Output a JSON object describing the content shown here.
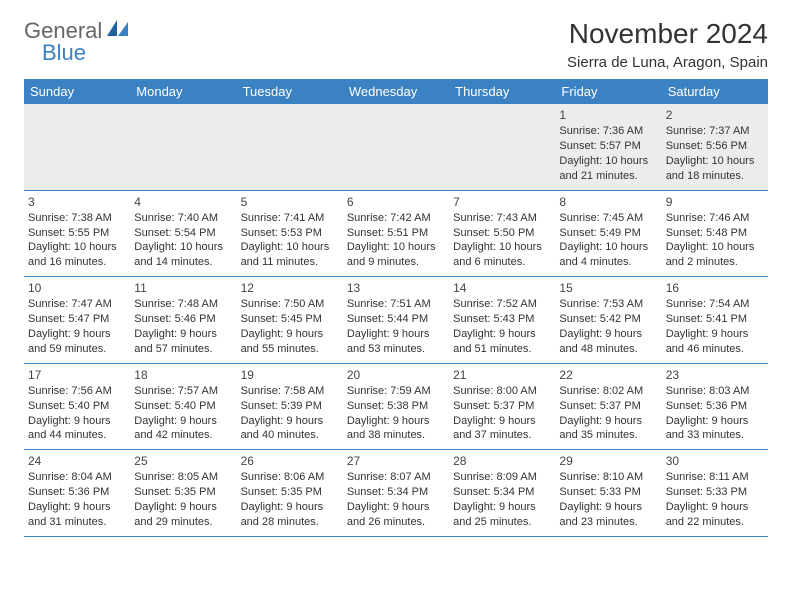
{
  "brand": {
    "general": "General",
    "blue": "Blue"
  },
  "title": "November 2024",
  "subtitle": "Sierra de Luna, Aragon, Spain",
  "colors": {
    "header_bg": "#3b82c4",
    "header_text": "#ffffff",
    "row1_bg": "#ececec",
    "border": "#3b82c4",
    "text": "#333333",
    "logo_gray": "#666666",
    "logo_blue": "#3b82c4",
    "page_bg": "#ffffff"
  },
  "layout": {
    "columns": 7,
    "rows": 5,
    "day_header_fontsize": 13,
    "title_fontsize": 28,
    "subtitle_fontsize": 15,
    "cell_fontsize": 11,
    "daynum_fontsize": 12
  },
  "weekdays": [
    "Sunday",
    "Monday",
    "Tuesday",
    "Wednesday",
    "Thursday",
    "Friday",
    "Saturday"
  ],
  "weeks": [
    [
      null,
      null,
      null,
      null,
      null,
      {
        "n": "1",
        "sr": "Sunrise: 7:36 AM",
        "ss": "Sunset: 5:57 PM",
        "dl": "Daylight: 10 hours and 21 minutes."
      },
      {
        "n": "2",
        "sr": "Sunrise: 7:37 AM",
        "ss": "Sunset: 5:56 PM",
        "dl": "Daylight: 10 hours and 18 minutes."
      }
    ],
    [
      {
        "n": "3",
        "sr": "Sunrise: 7:38 AM",
        "ss": "Sunset: 5:55 PM",
        "dl": "Daylight: 10 hours and 16 minutes."
      },
      {
        "n": "4",
        "sr": "Sunrise: 7:40 AM",
        "ss": "Sunset: 5:54 PM",
        "dl": "Daylight: 10 hours and 14 minutes."
      },
      {
        "n": "5",
        "sr": "Sunrise: 7:41 AM",
        "ss": "Sunset: 5:53 PM",
        "dl": "Daylight: 10 hours and 11 minutes."
      },
      {
        "n": "6",
        "sr": "Sunrise: 7:42 AM",
        "ss": "Sunset: 5:51 PM",
        "dl": "Daylight: 10 hours and 9 minutes."
      },
      {
        "n": "7",
        "sr": "Sunrise: 7:43 AM",
        "ss": "Sunset: 5:50 PM",
        "dl": "Daylight: 10 hours and 6 minutes."
      },
      {
        "n": "8",
        "sr": "Sunrise: 7:45 AM",
        "ss": "Sunset: 5:49 PM",
        "dl": "Daylight: 10 hours and 4 minutes."
      },
      {
        "n": "9",
        "sr": "Sunrise: 7:46 AM",
        "ss": "Sunset: 5:48 PM",
        "dl": "Daylight: 10 hours and 2 minutes."
      }
    ],
    [
      {
        "n": "10",
        "sr": "Sunrise: 7:47 AM",
        "ss": "Sunset: 5:47 PM",
        "dl": "Daylight: 9 hours and 59 minutes."
      },
      {
        "n": "11",
        "sr": "Sunrise: 7:48 AM",
        "ss": "Sunset: 5:46 PM",
        "dl": "Daylight: 9 hours and 57 minutes."
      },
      {
        "n": "12",
        "sr": "Sunrise: 7:50 AM",
        "ss": "Sunset: 5:45 PM",
        "dl": "Daylight: 9 hours and 55 minutes."
      },
      {
        "n": "13",
        "sr": "Sunrise: 7:51 AM",
        "ss": "Sunset: 5:44 PM",
        "dl": "Daylight: 9 hours and 53 minutes."
      },
      {
        "n": "14",
        "sr": "Sunrise: 7:52 AM",
        "ss": "Sunset: 5:43 PM",
        "dl": "Daylight: 9 hours and 51 minutes."
      },
      {
        "n": "15",
        "sr": "Sunrise: 7:53 AM",
        "ss": "Sunset: 5:42 PM",
        "dl": "Daylight: 9 hours and 48 minutes."
      },
      {
        "n": "16",
        "sr": "Sunrise: 7:54 AM",
        "ss": "Sunset: 5:41 PM",
        "dl": "Daylight: 9 hours and 46 minutes."
      }
    ],
    [
      {
        "n": "17",
        "sr": "Sunrise: 7:56 AM",
        "ss": "Sunset: 5:40 PM",
        "dl": "Daylight: 9 hours and 44 minutes."
      },
      {
        "n": "18",
        "sr": "Sunrise: 7:57 AM",
        "ss": "Sunset: 5:40 PM",
        "dl": "Daylight: 9 hours and 42 minutes."
      },
      {
        "n": "19",
        "sr": "Sunrise: 7:58 AM",
        "ss": "Sunset: 5:39 PM",
        "dl": "Daylight: 9 hours and 40 minutes."
      },
      {
        "n": "20",
        "sr": "Sunrise: 7:59 AM",
        "ss": "Sunset: 5:38 PM",
        "dl": "Daylight: 9 hours and 38 minutes."
      },
      {
        "n": "21",
        "sr": "Sunrise: 8:00 AM",
        "ss": "Sunset: 5:37 PM",
        "dl": "Daylight: 9 hours and 37 minutes."
      },
      {
        "n": "22",
        "sr": "Sunrise: 8:02 AM",
        "ss": "Sunset: 5:37 PM",
        "dl": "Daylight: 9 hours and 35 minutes."
      },
      {
        "n": "23",
        "sr": "Sunrise: 8:03 AM",
        "ss": "Sunset: 5:36 PM",
        "dl": "Daylight: 9 hours and 33 minutes."
      }
    ],
    [
      {
        "n": "24",
        "sr": "Sunrise: 8:04 AM",
        "ss": "Sunset: 5:36 PM",
        "dl": "Daylight: 9 hours and 31 minutes."
      },
      {
        "n": "25",
        "sr": "Sunrise: 8:05 AM",
        "ss": "Sunset: 5:35 PM",
        "dl": "Daylight: 9 hours and 29 minutes."
      },
      {
        "n": "26",
        "sr": "Sunrise: 8:06 AM",
        "ss": "Sunset: 5:35 PM",
        "dl": "Daylight: 9 hours and 28 minutes."
      },
      {
        "n": "27",
        "sr": "Sunrise: 8:07 AM",
        "ss": "Sunset: 5:34 PM",
        "dl": "Daylight: 9 hours and 26 minutes."
      },
      {
        "n": "28",
        "sr": "Sunrise: 8:09 AM",
        "ss": "Sunset: 5:34 PM",
        "dl": "Daylight: 9 hours and 25 minutes."
      },
      {
        "n": "29",
        "sr": "Sunrise: 8:10 AM",
        "ss": "Sunset: 5:33 PM",
        "dl": "Daylight: 9 hours and 23 minutes."
      },
      {
        "n": "30",
        "sr": "Sunrise: 8:11 AM",
        "ss": "Sunset: 5:33 PM",
        "dl": "Daylight: 9 hours and 22 minutes."
      }
    ]
  ]
}
